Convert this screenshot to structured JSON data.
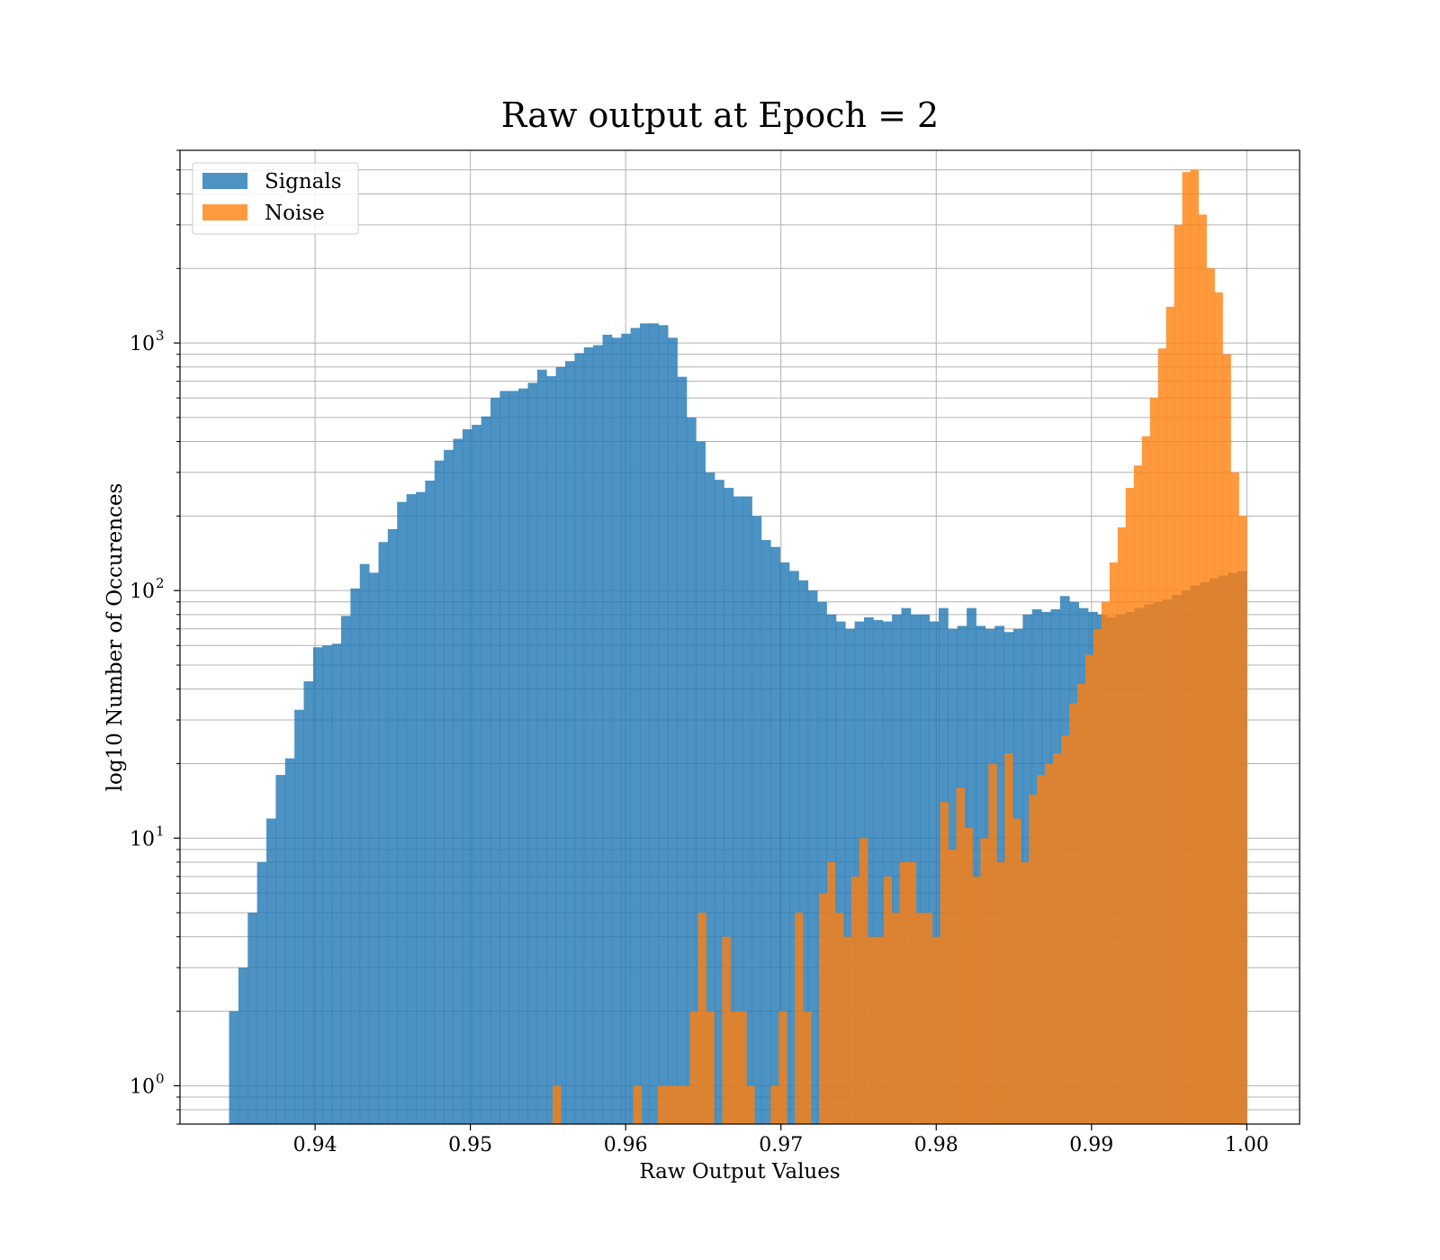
{
  "chart_data": {
    "type": "histogram",
    "title": "Raw output at Epoch = 2",
    "xlabel": "Raw Output Values",
    "ylabel": "log10 Number of Occurences",
    "yscale": "log",
    "xlim": [
      0.9313,
      1.0034
    ],
    "ylim": [
      0.7,
      6000
    ],
    "xticks": [
      {
        "value": 0.94,
        "label": "0.94"
      },
      {
        "value": 0.95,
        "label": "0.95"
      },
      {
        "value": 0.96,
        "label": "0.96"
      },
      {
        "value": 0.97,
        "label": "0.97"
      },
      {
        "value": 0.98,
        "label": "0.98"
      },
      {
        "value": 0.99,
        "label": "0.99"
      },
      {
        "value": 1.0,
        "label": "1.00"
      }
    ],
    "yticks": [
      {
        "value": 1,
        "base": "10",
        "exp": "0"
      },
      {
        "value": 10,
        "base": "10",
        "exp": "1"
      },
      {
        "value": 100,
        "base": "10",
        "exp": "2"
      },
      {
        "value": 1000,
        "base": "10",
        "exp": "3"
      }
    ],
    "grid": true,
    "legend_position": "upper-left",
    "series": [
      {
        "name": "Signals",
        "color": "#1f77b4",
        "opacity": 0.8,
        "bin_start": 0.93446,
        "bin_end": 1.0,
        "counts": [
          2,
          3,
          5,
          8,
          12,
          18,
          21,
          33,
          43,
          59,
          60,
          61,
          79,
          102,
          128,
          118,
          157,
          177,
          228,
          245,
          250,
          278,
          335,
          370,
          410,
          448,
          467,
          505,
          600,
          640,
          640,
          655,
          690,
          780,
          735,
          800,
          845,
          910,
          960,
          980,
          1080,
          1050,
          1090,
          1150,
          1200,
          1200,
          1180,
          1050,
          730,
          500,
          400,
          300,
          280,
          260,
          240,
          240,
          200,
          160,
          150,
          130,
          120,
          110,
          100,
          90,
          80,
          75,
          70,
          75,
          78,
          76,
          75,
          80,
          85,
          80,
          80,
          75,
          85,
          70,
          72,
          85,
          72,
          70,
          72,
          68,
          70,
          80,
          84,
          82,
          84,
          95,
          90,
          85,
          82,
          80,
          78,
          80,
          82,
          85,
          88,
          90,
          92,
          96,
          100,
          105,
          108,
          112,
          115,
          118,
          120
        ]
      },
      {
        "name": "Noise",
        "color": "#ff7f0e",
        "opacity": 0.8,
        "bin_start": 0.9553,
        "bin_end": 1.0,
        "counts": [
          1,
          0,
          0,
          0,
          0,
          0,
          0,
          0,
          0,
          0,
          1,
          0,
          0,
          1,
          1,
          1,
          1,
          2,
          5,
          2,
          0,
          4,
          2,
          2,
          1,
          0,
          0,
          1,
          2,
          0,
          5,
          2,
          0,
          6,
          8,
          5,
          4,
          7,
          10,
          4,
          4,
          7,
          5,
          8,
          8,
          5,
          5,
          4,
          14,
          9,
          16,
          11,
          7,
          10,
          20,
          8,
          22,
          12,
          8,
          15,
          18,
          20,
          22,
          26,
          35,
          42,
          55,
          70,
          90,
          130,
          180,
          260,
          320,
          420,
          600,
          950,
          1400,
          3000,
          4900,
          5000,
          3300,
          2000,
          1600,
          900,
          300,
          200
        ]
      }
    ]
  }
}
